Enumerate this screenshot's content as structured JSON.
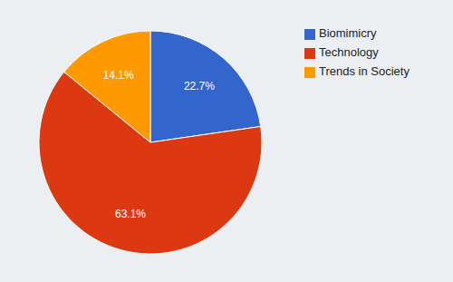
{
  "chart_data": {
    "type": "pie",
    "categories": [
      "Biomimicry",
      "Technology",
      "Trends in Society"
    ],
    "values": [
      22.7,
      63.1,
      14.1
    ],
    "value_labels": [
      "22.7%",
      "63.1%",
      "14.1%"
    ],
    "colors": [
      "#3366cc",
      "#dc3912",
      "#ff9900"
    ],
    "data_labels": true,
    "legend": "right"
  }
}
